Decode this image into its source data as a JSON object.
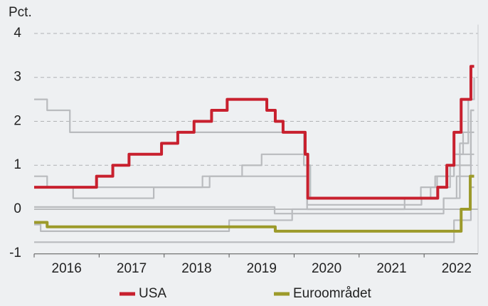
{
  "chart_data": {
    "type": "step",
    "y_label": "Pct.",
    "xlim": [
      2016,
      2022.83
    ],
    "xticks": [
      2016,
      2017,
      2018,
      2019,
      2020,
      2021,
      2022
    ],
    "ylim": [
      -1,
      4.2
    ],
    "yticks": [
      -1,
      0,
      1,
      2,
      3,
      4
    ],
    "grid": true,
    "series": [
      {
        "color": "#b9bbbe",
        "x": [
          2016,
          2016.6,
          2017.84,
          2018.59,
          2020.2,
          2021.96,
          2022.1,
          2022.17,
          2022.35,
          2022.46,
          2022.6,
          2022.72,
          2022.77
        ],
        "values": [
          0.5,
          0.25,
          0.5,
          0.75,
          0.1,
          0.25,
          0.5,
          0.75,
          1.0,
          1.25,
          1.75,
          2.25,
          2.25
        ]
      },
      {
        "color": "#b9bbbe",
        "x": [
          2016,
          2016.2,
          2016.55,
          2019.0,
          2019.5,
          2020.15,
          2020.25,
          2022.2,
          2022.4,
          2022.55,
          2022.68,
          2022.77
        ],
        "values": [
          2.5,
          2.25,
          1.75,
          1.75,
          1.75,
          1.0,
          0.25,
          0.5,
          1.0,
          1.5,
          2.5,
          3.0
        ]
      },
      {
        "color": "#b9bbbe",
        "x": [
          2016,
          2016.2,
          2018.7,
          2019.2,
          2019.5,
          2020.2,
          2021.7,
          2021.95,
          2022.2,
          2022.46,
          2022.72,
          2022.77
        ],
        "values": [
          0.75,
          0.5,
          0.75,
          1.0,
          1.25,
          0.0,
          0.25,
          0.5,
          0.75,
          1.25,
          2.25,
          2.25
        ]
      },
      {
        "color": "#b9bbbe",
        "x": [
          2016,
          2016.1,
          2019.0,
          2019.97,
          2022.3,
          2022.5,
          2022.72,
          2022.77
        ],
        "values": [
          -0.35,
          -0.5,
          -0.25,
          0.0,
          0.25,
          0.75,
          1.75,
          1.75
        ]
      },
      {
        "color": "#b9bbbe",
        "x": [
          2016,
          2022.46,
          2022.72,
          2022.77
        ],
        "values": [
          -0.75,
          -0.25,
          0.5,
          0.5
        ]
      },
      {
        "color": "#b9bbbe",
        "x": [
          2016,
          2019.7,
          2022.3,
          2022.55,
          2022.72,
          2022.77
        ],
        "values": [
          0.05,
          -0.1,
          0.25,
          1.0,
          1.25,
          1.25
        ]
      },
      {
        "name": "USA",
        "color": "#c8202e",
        "x": [
          2016,
          2016.96,
          2017.21,
          2017.46,
          2017.96,
          2018.21,
          2018.46,
          2018.73,
          2018.97,
          2019.58,
          2019.71,
          2019.83,
          2020.17,
          2020.21,
          2022.21,
          2022.35,
          2022.46,
          2022.57,
          2022.72,
          2022.77
        ],
        "values": [
          0.5,
          0.75,
          1.0,
          1.25,
          1.5,
          1.75,
          2.0,
          2.25,
          2.5,
          2.25,
          2.0,
          1.75,
          1.25,
          0.25,
          0.5,
          1.0,
          1.75,
          2.5,
          3.25,
          3.25
        ]
      },
      {
        "name": "Euroområdet",
        "color": "#9c9a2a",
        "x": [
          2016,
          2016.2,
          2019.71,
          2022.57,
          2022.71,
          2022.77
        ],
        "values": [
          -0.3,
          -0.4,
          -0.5,
          0.0,
          0.75,
          0.75
        ]
      }
    ]
  }
}
